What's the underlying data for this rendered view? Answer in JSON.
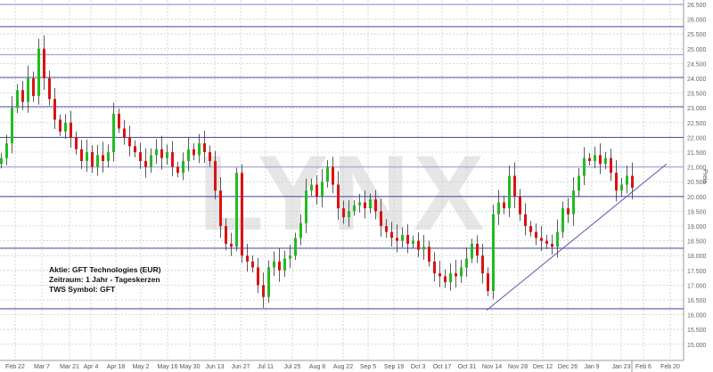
{
  "chart_data": {
    "type": "candlestick",
    "watermark": "LYNX",
    "ylabel": "Preis",
    "ylim": [
      14.75,
      26.65
    ],
    "grid": true,
    "y_ticks": [
      "15.000",
      "15.500",
      "16.000",
      "16.500",
      "17.000",
      "17.500",
      "18.000",
      "18.500",
      "19.000",
      "19.500",
      "20.000",
      "20.500",
      "21.000",
      "21.500",
      "22.000",
      "22.500",
      "23.000",
      "23.500",
      "24.000",
      "24.500",
      "25.000",
      "25.500",
      "26.000",
      "26.500"
    ],
    "x_ticks": [
      "Feb 22",
      "Mar 7",
      "Mar 21",
      "Apr 4",
      "Apr 18",
      "May 2",
      "May 16",
      "May 30",
      "Jun 13",
      "Jun 27",
      "Jul 11",
      "Jul 25",
      "Aug 8",
      "Aug 22",
      "Sep 5",
      "Sep 19",
      "Oct 3",
      "Oct 17",
      "Oct 31",
      "Nov 14",
      "Nov 28",
      "Dec 12",
      "Dec 26",
      "Jan 9",
      "Jan 23",
      "Feb 6",
      "Feb 20"
    ],
    "closes": [
      21.3,
      21.8,
      23.0,
      23.6,
      23.2,
      24.0,
      23.4,
      25.0,
      24.0,
      23.3,
      22.6,
      22.2,
      22.5,
      22.0,
      21.6,
      21.2,
      21.5,
      21.0,
      21.4,
      21.2,
      21.5,
      22.8,
      22.3,
      22.0,
      21.7,
      21.5,
      21.2,
      21.0,
      21.4,
      21.6,
      21.3,
      21.5,
      21.0,
      20.8,
      21.2,
      21.6,
      21.4,
      21.8,
      21.5,
      21.2,
      20.2,
      19.0,
      18.4,
      18.3,
      20.8,
      18.0,
      17.8,
      17.6,
      17.0,
      16.6,
      17.6,
      17.8,
      17.5,
      17.9,
      18.0,
      18.6,
      19.1,
      20.2,
      20.4,
      20.0,
      20.5,
      21.0,
      20.4,
      19.6,
      19.3,
      19.5,
      19.7,
      19.8,
      19.6,
      19.9,
      19.5,
      19.0,
      18.8,
      18.6,
      18.5,
      18.7,
      18.4,
      18.5,
      18.2,
      18.3,
      17.8,
      17.4,
      17.3,
      17.1,
      17.4,
      17.3,
      17.6,
      17.9,
      18.4,
      18.0,
      17.4,
      16.8,
      19.4,
      19.8,
      19.6,
      20.7,
      20.0,
      19.4,
      19.0,
      18.8,
      18.6,
      18.5,
      18.4,
      18.3,
      18.8,
      19.6,
      19.4,
      20.2,
      20.7,
      21.3,
      21.2,
      21.4,
      21.1,
      21.3,
      20.8,
      20.2,
      20.4,
      20.7,
      20.3
    ],
    "horizontal_levels": [
      26.5,
      25.75,
      24.8,
      24.03,
      23.04,
      22.0,
      21.0,
      20.0,
      18.25,
      16.2
    ],
    "trendline": {
      "from": {
        "date": "Nov 1",
        "price": 16.15
      },
      "to": {
        "date": "Feb 12",
        "price": 21.1
      }
    },
    "colors": {
      "up": "#22bb22",
      "down": "#dd1111",
      "wick": "#333333",
      "level": "#5555aa",
      "level_light": "#aaaadd",
      "grid": "#cccccc"
    }
  },
  "info": {
    "line1": "Aktie: GFT Technologies (EUR)",
    "line2": "Zeitraum: 1 Jahr - Tageskerzen",
    "line3": "TWS Symbol: GFT"
  }
}
